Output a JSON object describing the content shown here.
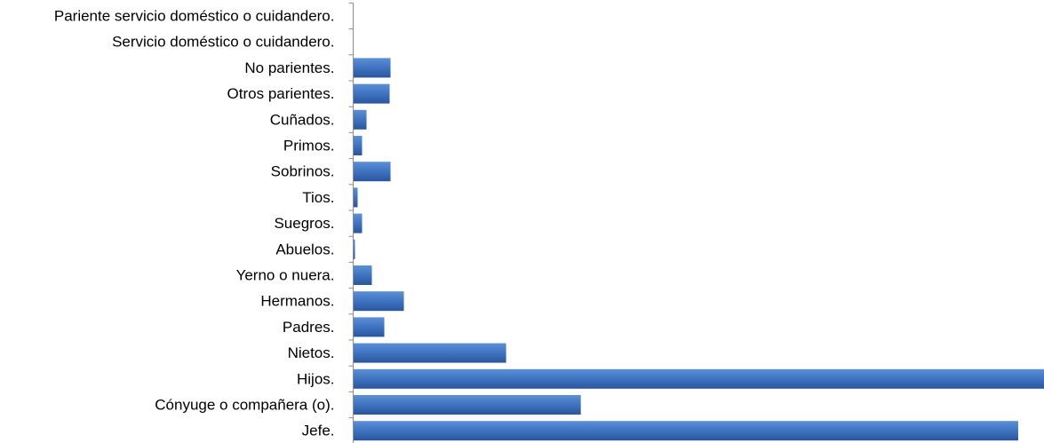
{
  "chart_data": {
    "type": "bar",
    "orientation": "horizontal",
    "categories": [
      "Pariente servicio doméstico o cuidandero.",
      "Servicio doméstico o cuidandero.",
      "No parientes.",
      "Otros parientes.",
      "Cuñados.",
      "Primos.",
      "Sobrinos.",
      "Tios.",
      "Suegros.",
      "Abuelos.",
      "Yerno o nuera.",
      "Hermanos.",
      "Padres.",
      "Nietos.",
      "Hijos.",
      "Cónyuge o compañera (o).",
      "Jefe."
    ],
    "values": [
      0,
      0,
      42,
      41,
      15,
      10,
      42,
      5,
      10,
      2,
      21,
      57,
      35,
      172,
      777,
      256,
      748
    ],
    "xlim": [
      0,
      777
    ],
    "title": "",
    "xlabel": "",
    "ylabel": "",
    "grid": false,
    "legend": "none",
    "colors": {
      "bar_top": "#5b8fd6",
      "bar_mid": "#3f73c0",
      "bar_bottom": "#2a559c",
      "axis": "#8c8c8c"
    }
  }
}
